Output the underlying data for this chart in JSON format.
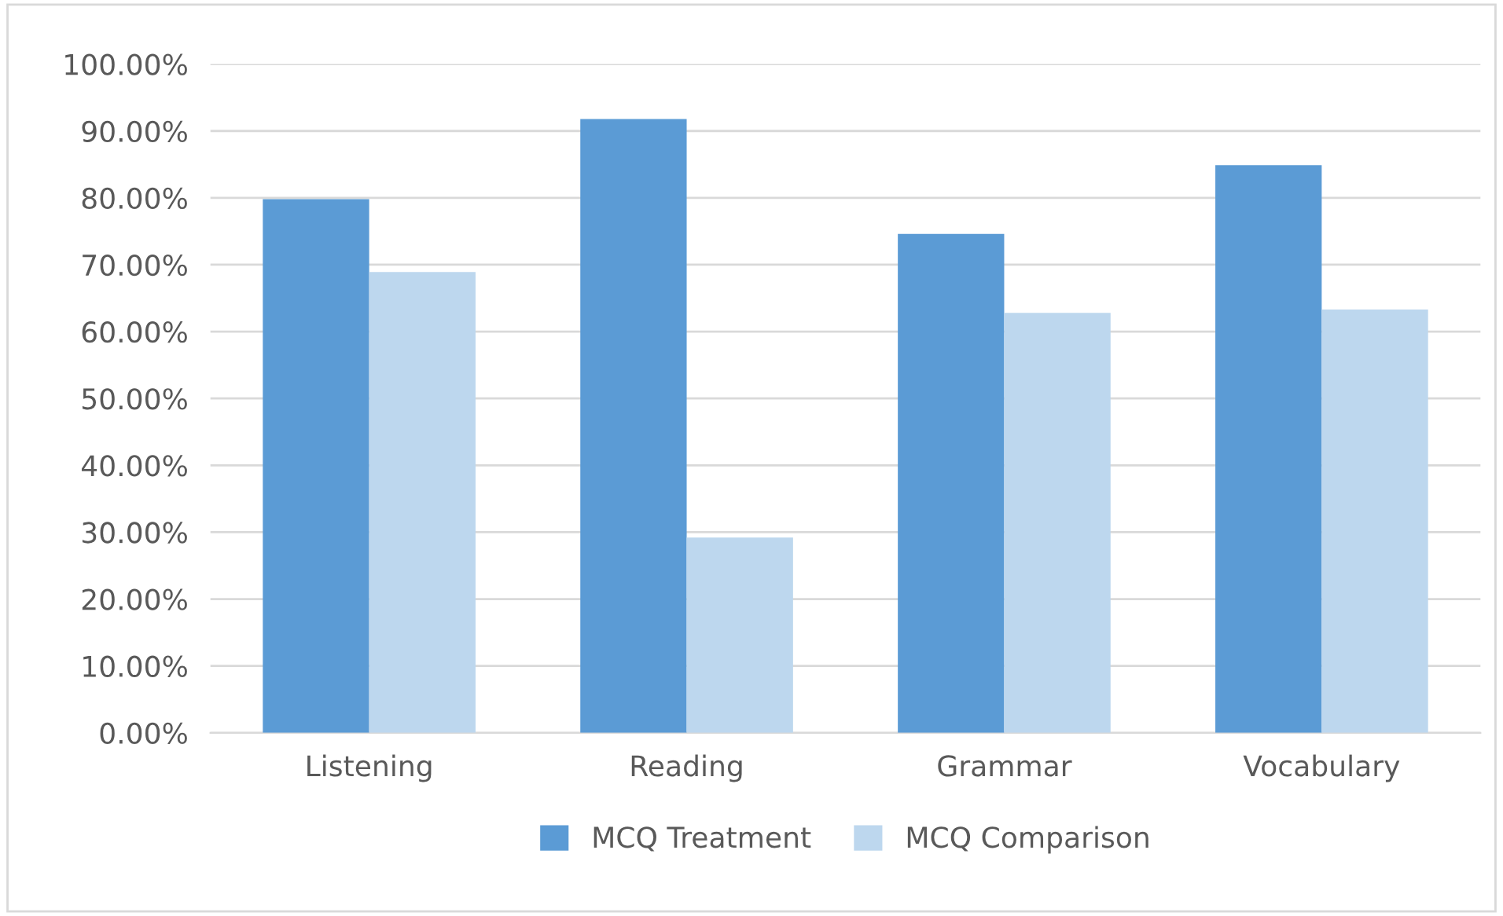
{
  "chart_data": {
    "type": "bar",
    "categories": [
      "Listening",
      "Reading",
      "Grammar",
      "Vocabulary"
    ],
    "series": [
      {
        "name": "MCQ Treatment",
        "color": "#5b9bd5",
        "values": [
          79.8,
          91.8,
          74.6,
          84.9
        ]
      },
      {
        "name": "MCQ Comparison",
        "color": "#bdd7ee",
        "values": [
          68.9,
          29.2,
          62.8,
          63.3
        ]
      }
    ],
    "ylim": [
      0,
      100
    ],
    "yticks": [
      {
        "value": 0,
        "label": "0.00%"
      },
      {
        "value": 10,
        "label": "10.00%"
      },
      {
        "value": 20,
        "label": "20.00%"
      },
      {
        "value": 30,
        "label": "30.00%"
      },
      {
        "value": 40,
        "label": "40.00%"
      },
      {
        "value": 50,
        "label": "50.00%"
      },
      {
        "value": 60,
        "label": "60.00%"
      },
      {
        "value": 70,
        "label": "70.00%"
      },
      {
        "value": 80,
        "label": "80.00%"
      },
      {
        "value": 90,
        "label": "90.00%"
      },
      {
        "value": 100,
        "label": "100.00%"
      }
    ],
    "grid": "y",
    "legend": "bottom"
  }
}
